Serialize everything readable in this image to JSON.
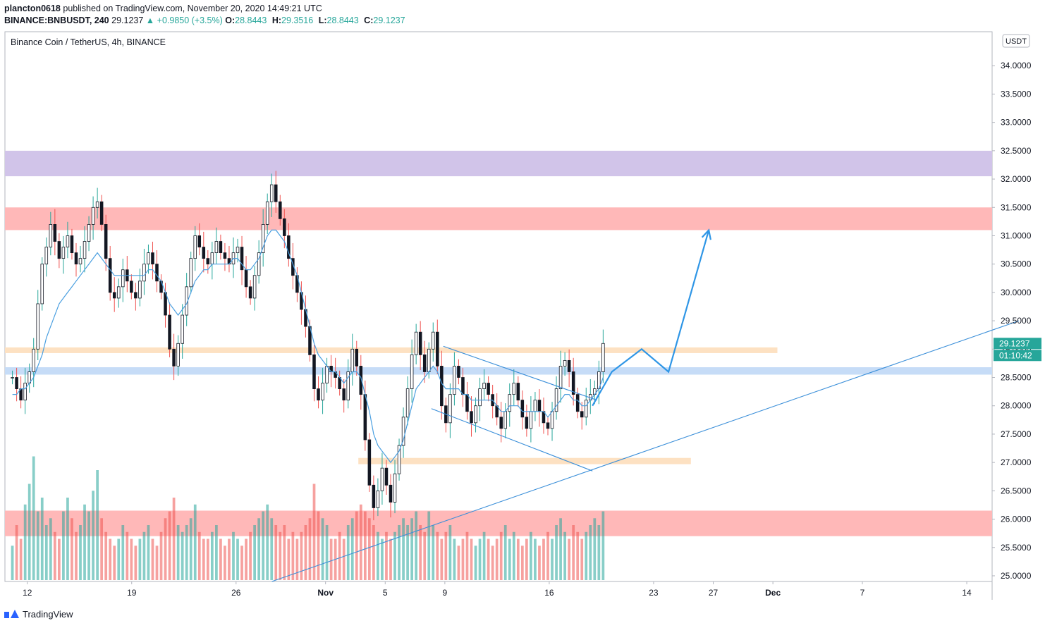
{
  "header": {
    "author": "plancton0618",
    "published_text": "published on TradingView.com, November 20, 2020 14:49:21 UTC",
    "symbol": "BINANCE:BNBUSDT, 240",
    "last": "29.1237",
    "change": "▲ +0.9850 (+3.5%)",
    "o_label": "O:",
    "o_value": "28.8443",
    "h_label": "H:",
    "h_value": "29.3516",
    "l_label": "L:",
    "l_value": "28.8443",
    "c_label": "C:",
    "c_value": "29.1237"
  },
  "footer": {
    "brand": "TradingView"
  },
  "colors": {
    "up": "#26a69a",
    "down": "#ef5350",
    "candle": "#131722",
    "ma": "#4a9fe0",
    "trend": "#3b8fd9",
    "projection": "#2f96e6",
    "zone_purple": "#d1c4e9",
    "zone_red": "#ffb8b8",
    "zone_orange": "#fde1c2",
    "zone_blue": "#c6dcf7"
  },
  "chart_data": {
    "type": "candlestick",
    "title": "Binance Coin / TetherUS, 4h, BINANCE",
    "currency": "USDT",
    "ylim": [
      24.9,
      34.6
    ],
    "y_ticks": [
      "34.0000",
      "33.5000",
      "33.0000",
      "32.5000",
      "32.0000",
      "31.5000",
      "31.0000",
      "30.5000",
      "30.0000",
      "29.5000",
      "29.0000",
      "28.5000",
      "28.0000",
      "27.5000",
      "27.0000",
      "26.5000",
      "26.0000",
      "25.5000",
      "25.0000"
    ],
    "x_ticks": [
      {
        "label": "12",
        "day": 0
      },
      {
        "label": "19",
        "day": 7
      },
      {
        "label": "26",
        "day": 14
      },
      {
        "label": "Nov",
        "day": 20
      },
      {
        "label": "5",
        "day": 24
      },
      {
        "label": "9",
        "day": 28
      },
      {
        "label": "16",
        "day": 35
      },
      {
        "label": "23",
        "day": 42
      },
      {
        "label": "27",
        "day": 46
      },
      {
        "label": "Dec",
        "day": 50
      },
      {
        "label": "7",
        "day": 56
      },
      {
        "label": "14",
        "day": 63
      }
    ],
    "x_range_days": [
      -1.5,
      64.7
    ],
    "last_price_label": "29.1237",
    "countdown_label": "01:10:42",
    "close_series": [
      28.5,
      28.3,
      28.1,
      28.4,
      28.6,
      29.0,
      29.8,
      30.5,
      30.8,
      31.2,
      30.9,
      30.6,
      30.8,
      31.0,
      30.7,
      30.5,
      30.6,
      30.9,
      31.2,
      31.5,
      31.6,
      31.2,
      30.6,
      30.0,
      29.9,
      30.1,
      30.4,
      30.2,
      30.0,
      29.9,
      30.2,
      30.5,
      30.7,
      30.5,
      30.2,
      30.0,
      29.6,
      29.0,
      28.7,
      29.1,
      29.6,
      30.1,
      30.6,
      31.0,
      30.8,
      30.6,
      30.5,
      30.7,
      30.9,
      30.7,
      30.6,
      30.5,
      30.7,
      30.8,
      30.4,
      30.1,
      29.9,
      30.3,
      30.7,
      31.2,
      31.6,
      31.9,
      31.6,
      31.3,
      31.0,
      30.6,
      30.3,
      30.0,
      29.7,
      29.4,
      28.9,
      28.3,
      28.1,
      28.4,
      28.7,
      28.6,
      28.5,
      28.3,
      28.1,
      28.6,
      29.0,
      28.7,
      28.2,
      27.4,
      26.6,
      26.2,
      26.5,
      26.9,
      26.6,
      26.3,
      26.8,
      27.3,
      27.8,
      28.3,
      28.9,
      29.3,
      28.9,
      28.6,
      29.0,
      29.3,
      28.7,
      28.0,
      27.7,
      28.2,
      28.7,
      28.5,
      28.2,
      27.9,
      27.7,
      28.0,
      28.3,
      28.4,
      28.2,
      28.0,
      27.8,
      27.6,
      27.9,
      28.2,
      28.4,
      28.1,
      27.8,
      27.6,
      27.9,
      28.1,
      27.9,
      27.7,
      27.6,
      27.9,
      28.3,
      28.7,
      28.8,
      28.6,
      28.2,
      27.9,
      27.8,
      28.1,
      28.2,
      28.3,
      28.6,
      29.1
    ],
    "volume_series": [
      0.25,
      0.4,
      0.3,
      0.55,
      0.7,
      0.9,
      0.5,
      0.6,
      0.4,
      0.45,
      0.35,
      0.3,
      0.5,
      0.6,
      0.45,
      0.35,
      0.4,
      0.55,
      0.5,
      0.65,
      0.8,
      0.45,
      0.35,
      0.3,
      0.25,
      0.3,
      0.4,
      0.35,
      0.3,
      0.25,
      0.3,
      0.35,
      0.4,
      0.3,
      0.25,
      0.35,
      0.45,
      0.5,
      0.6,
      0.4,
      0.35,
      0.4,
      0.45,
      0.55,
      0.35,
      0.3,
      0.3,
      0.35,
      0.4,
      0.3,
      0.25,
      0.3,
      0.35,
      0.3,
      0.25,
      0.3,
      0.35,
      0.4,
      0.45,
      0.5,
      0.55,
      0.45,
      0.4,
      0.35,
      0.4,
      0.3,
      0.35,
      0.3,
      0.35,
      0.4,
      0.45,
      0.7,
      0.5,
      0.45,
      0.4,
      0.3,
      0.3,
      0.35,
      0.3,
      0.4,
      0.45,
      0.5,
      0.55,
      0.5,
      0.45,
      0.4,
      0.35,
      0.3,
      0.35,
      0.3,
      0.35,
      0.4,
      0.45,
      0.4,
      0.45,
      0.5,
      0.4,
      0.35,
      0.5,
      0.4,
      0.35,
      0.3,
      0.35,
      0.4,
      0.3,
      0.25,
      0.3,
      0.35,
      0.3,
      0.25,
      0.3,
      0.35,
      0.3,
      0.25,
      0.3,
      0.35,
      0.4,
      0.3,
      0.35,
      0.3,
      0.25,
      0.3,
      0.35,
      0.3,
      0.25,
      0.3,
      0.35,
      0.3,
      0.4,
      0.45,
      0.35,
      0.3,
      0.4,
      0.35,
      0.3,
      0.35,
      0.4,
      0.45,
      0.4,
      0.5
    ],
    "volume_ratio": true,
    "ma_series": [
      28.2,
      28.2,
      28.3,
      28.3,
      28.4,
      28.5,
      28.7,
      28.9,
      29.2,
      29.4,
      29.6,
      29.8,
      29.9,
      30.0,
      30.1,
      30.2,
      30.3,
      30.4,
      30.5,
      30.6,
      30.7,
      30.6,
      30.5,
      30.4,
      30.3,
      30.3,
      30.3,
      30.3,
      30.3,
      30.3,
      30.3,
      30.3,
      30.4,
      30.4,
      30.3,
      30.2,
      30.0,
      29.8,
      29.7,
      29.6,
      29.7,
      29.8,
      30.0,
      30.2,
      30.3,
      30.4,
      30.4,
      30.5,
      30.5,
      30.5,
      30.5,
      30.5,
      30.6,
      30.6,
      30.5,
      30.4,
      30.4,
      30.5,
      30.6,
      30.8,
      31.0,
      31.1,
      31.1,
      31.0,
      30.9,
      30.7,
      30.5,
      30.3,
      30.0,
      29.7,
      29.4,
      29.1,
      28.9,
      28.8,
      28.7,
      28.6,
      28.6,
      28.5,
      28.4,
      28.5,
      28.6,
      28.6,
      28.5,
      28.2,
      27.9,
      27.5,
      27.3,
      27.2,
      27.1,
      27.0,
      27.1,
      27.2,
      27.4,
      27.7,
      28.0,
      28.3,
      28.4,
      28.5,
      28.6,
      28.7,
      28.6,
      28.4,
      28.3,
      28.3,
      28.3,
      28.3,
      28.2,
      28.2,
      28.1,
      28.1,
      28.1,
      28.1,
      28.1,
      28.1,
      28.0,
      27.9,
      27.9,
      28.0,
      28.0,
      28.0,
      27.9,
      27.9,
      27.9,
      27.9,
      27.9,
      27.9,
      27.8,
      27.9,
      28.0,
      28.1,
      28.2,
      28.2,
      28.1,
      28.1,
      28.0,
      28.0,
      28.1,
      28.2,
      28.3,
      28.5
    ],
    "zones": [
      {
        "name": "resistance-purple",
        "y1": 32.05,
        "y2": 32.5,
        "day_start": -1.5,
        "day_end": 64.7,
        "color": "#d1c4e9"
      },
      {
        "name": "resistance-red",
        "y1": 31.1,
        "y2": 31.5,
        "day_start": -1.5,
        "day_end": 64.7,
        "color": "#ffb8b8"
      },
      {
        "name": "level-orange-upper",
        "y1": 28.93,
        "y2": 29.03,
        "day_start": -1.5,
        "day_end": 50.3,
        "color": "#fde1c2"
      },
      {
        "name": "level-blue",
        "y1": 28.55,
        "y2": 28.68,
        "day_start": -1.5,
        "day_end": 64.7,
        "color": "#c6dcf7"
      },
      {
        "name": "level-orange-lower",
        "y1": 26.97,
        "y2": 27.08,
        "day_start": 22.2,
        "day_end": 44.5,
        "color": "#fde1c2"
      },
      {
        "name": "support-red",
        "y1": 25.7,
        "y2": 26.15,
        "day_start": -1.5,
        "day_end": 64.7,
        "color": "#ffb8b8"
      }
    ],
    "trend_lines": [
      {
        "name": "rising-support",
        "points": [
          [
            16.4,
            24.9
          ],
          [
            66.5,
            29.5
          ]
        ]
      },
      {
        "name": "channel-upper",
        "points": [
          [
            27.9,
            29.05
          ],
          [
            38.2,
            28.1
          ]
        ]
      },
      {
        "name": "channel-lower",
        "points": [
          [
            27.1,
            27.95
          ],
          [
            37.9,
            26.85
          ]
        ]
      }
    ],
    "projection": [
      [
        37.9,
        28.0
      ],
      [
        39.2,
        28.6
      ],
      [
        41.2,
        29.0
      ],
      [
        43.0,
        28.6
      ],
      [
        45.7,
        31.1
      ]
    ]
  }
}
